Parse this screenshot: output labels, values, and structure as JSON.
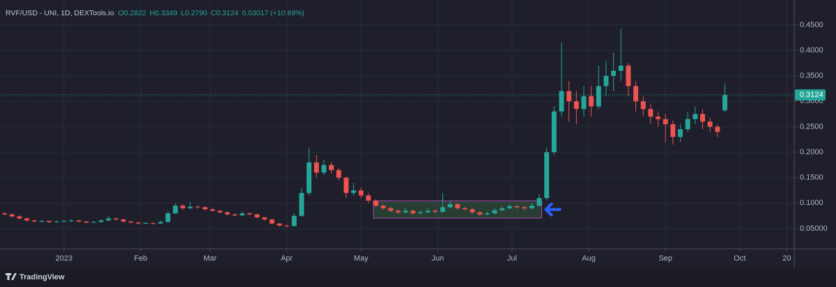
{
  "chart_data": {
    "type": "candlestick",
    "symbol": "RVF/USD - UNI, 1D, DEXTools.io",
    "ohlc_labels": [
      "O0.2822",
      "H0.3349",
      "L0.2790",
      "C0.3124",
      "0.03017 (+10.69%)"
    ],
    "up_color": "#26a69a",
    "down_color": "#ef5350",
    "grid": true,
    "xlim": [
      -23.6,
      295
    ],
    "ylim": [
      0.0104,
      0.488
    ],
    "xticks": [
      {
        "value": 0,
        "label": "2023"
      },
      {
        "value": 31,
        "label": "Feb"
      },
      {
        "value": 59,
        "label": "Mar"
      },
      {
        "value": 90,
        "label": "Apr"
      },
      {
        "value": 120,
        "label": "May"
      },
      {
        "value": 151,
        "label": "Jun"
      },
      {
        "value": 181,
        "label": "Jul"
      },
      {
        "value": 212,
        "label": "Aug"
      },
      {
        "value": 243,
        "label": "Sep"
      },
      {
        "value": 273,
        "label": "Oct"
      },
      {
        "value": 292,
        "label": "20"
      }
    ],
    "yticks": [
      {
        "value": 0.05,
        "label": "0.05000"
      },
      {
        "value": 0.1,
        "label": "0.1000"
      },
      {
        "value": 0.15,
        "label": "0.1500"
      },
      {
        "value": 0.2,
        "label": "0.2000"
      },
      {
        "value": 0.25,
        "label": "0.2500"
      },
      {
        "value": 0.3,
        "label": "0.3000"
      },
      {
        "value": 0.35,
        "label": "0.3500"
      },
      {
        "value": 0.4,
        "label": "0.4000"
      },
      {
        "value": 0.45,
        "label": "0.4500"
      }
    ],
    "last_price": 0.3124,
    "highlight_box": {
      "x": [
        125,
        193
      ],
      "y": [
        0.0705,
        0.1046
      ]
    },
    "x": [
      -24,
      -21,
      -18,
      -15,
      -12,
      -9,
      -6,
      -3,
      0,
      3,
      6,
      9,
      12,
      15,
      18,
      21,
      24,
      27,
      30,
      33,
      36,
      39,
      42,
      45,
      48,
      51,
      54,
      57,
      60,
      63,
      66,
      69,
      72,
      75,
      78,
      81,
      84,
      87,
      90,
      93,
      96,
      99,
      102,
      105,
      108,
      111,
      114,
      117,
      120,
      123,
      126,
      129,
      132,
      135,
      138,
      141,
      144,
      147,
      150,
      153,
      156,
      159,
      162,
      165,
      168,
      171,
      174,
      177,
      180,
      183,
      186,
      189,
      192,
      195,
      198,
      201,
      204,
      207,
      210,
      213,
      216,
      219,
      222,
      225,
      228,
      231,
      234,
      237,
      240,
      243,
      246,
      249,
      252,
      255,
      258,
      261,
      264,
      267
    ],
    "candles": [
      [
        0.08,
        0.083,
        0.076,
        0.078
      ],
      [
        0.078,
        0.08,
        0.072,
        0.074
      ],
      [
        0.074,
        0.076,
        0.068,
        0.07
      ],
      [
        0.07,
        0.072,
        0.064,
        0.066
      ],
      [
        0.066,
        0.068,
        0.062,
        0.064
      ],
      [
        0.064,
        0.067,
        0.062,
        0.065
      ],
      [
        0.065,
        0.066,
        0.061,
        0.063
      ],
      [
        0.063,
        0.066,
        0.062,
        0.064
      ],
      [
        0.064,
        0.067,
        0.063,
        0.065
      ],
      [
        0.065,
        0.068,
        0.063,
        0.066
      ],
      [
        0.066,
        0.067,
        0.062,
        0.064
      ],
      [
        0.064,
        0.065,
        0.06,
        0.062
      ],
      [
        0.062,
        0.065,
        0.061,
        0.063
      ],
      [
        0.063,
        0.068,
        0.062,
        0.066
      ],
      [
        0.066,
        0.075,
        0.065,
        0.07
      ],
      [
        0.07,
        0.072,
        0.066,
        0.068
      ],
      [
        0.068,
        0.069,
        0.062,
        0.064
      ],
      [
        0.064,
        0.065,
        0.06,
        0.062
      ],
      [
        0.062,
        0.063,
        0.058,
        0.06
      ],
      [
        0.06,
        0.063,
        0.059,
        0.061
      ],
      [
        0.061,
        0.062,
        0.058,
        0.06
      ],
      [
        0.06,
        0.066,
        0.059,
        0.063
      ],
      [
        0.063,
        0.085,
        0.062,
        0.08
      ],
      [
        0.08,
        0.1,
        0.078,
        0.095
      ],
      [
        0.095,
        0.098,
        0.087,
        0.09
      ],
      [
        0.09,
        0.102,
        0.088,
        0.093
      ],
      [
        0.093,
        0.096,
        0.089,
        0.092
      ],
      [
        0.092,
        0.094,
        0.085,
        0.088
      ],
      [
        0.088,
        0.09,
        0.083,
        0.085
      ],
      [
        0.085,
        0.087,
        0.08,
        0.082
      ],
      [
        0.082,
        0.084,
        0.076,
        0.078
      ],
      [
        0.078,
        0.08,
        0.074,
        0.076
      ],
      [
        0.076,
        0.083,
        0.075,
        0.08
      ],
      [
        0.08,
        0.082,
        0.076,
        0.078
      ],
      [
        0.078,
        0.079,
        0.07,
        0.072
      ],
      [
        0.072,
        0.073,
        0.066,
        0.068
      ],
      [
        0.068,
        0.069,
        0.058,
        0.06
      ],
      [
        0.06,
        0.061,
        0.054,
        0.056
      ],
      [
        0.056,
        0.058,
        0.052,
        0.055
      ],
      [
        0.055,
        0.08,
        0.054,
        0.075
      ],
      [
        0.075,
        0.13,
        0.073,
        0.12
      ],
      [
        0.12,
        0.208,
        0.115,
        0.18
      ],
      [
        0.18,
        0.195,
        0.15,
        0.16
      ],
      [
        0.16,
        0.185,
        0.155,
        0.175
      ],
      [
        0.175,
        0.18,
        0.158,
        0.165
      ],
      [
        0.165,
        0.17,
        0.145,
        0.15
      ],
      [
        0.15,
        0.152,
        0.11,
        0.12
      ],
      [
        0.12,
        0.14,
        0.115,
        0.125
      ],
      [
        0.125,
        0.13,
        0.11,
        0.115
      ],
      [
        0.115,
        0.12,
        0.1,
        0.105
      ],
      [
        0.105,
        0.108,
        0.092,
        0.095
      ],
      [
        0.095,
        0.098,
        0.087,
        0.09
      ],
      [
        0.09,
        0.093,
        0.082,
        0.085
      ],
      [
        0.085,
        0.088,
        0.079,
        0.082
      ],
      [
        0.082,
        0.09,
        0.08,
        0.085
      ],
      [
        0.085,
        0.087,
        0.077,
        0.08
      ],
      [
        0.08,
        0.086,
        0.078,
        0.082
      ],
      [
        0.082,
        0.09,
        0.08,
        0.085
      ],
      [
        0.085,
        0.088,
        0.08,
        0.083
      ],
      [
        0.083,
        0.12,
        0.081,
        0.092
      ],
      [
        0.092,
        0.105,
        0.09,
        0.098
      ],
      [
        0.098,
        0.1,
        0.087,
        0.09
      ],
      [
        0.09,
        0.093,
        0.085,
        0.088
      ],
      [
        0.088,
        0.09,
        0.079,
        0.082
      ],
      [
        0.082,
        0.084,
        0.075,
        0.078
      ],
      [
        0.078,
        0.083,
        0.076,
        0.08
      ],
      [
        0.08,
        0.09,
        0.078,
        0.086
      ],
      [
        0.086,
        0.094,
        0.084,
        0.09
      ],
      [
        0.09,
        0.098,
        0.088,
        0.094
      ],
      [
        0.094,
        0.096,
        0.089,
        0.092
      ],
      [
        0.092,
        0.095,
        0.086,
        0.09
      ],
      [
        0.09,
        0.1,
        0.088,
        0.095
      ],
      [
        0.095,
        0.118,
        0.093,
        0.11
      ],
      [
        0.11,
        0.21,
        0.105,
        0.2
      ],
      [
        0.2,
        0.29,
        0.195,
        0.28
      ],
      [
        0.28,
        0.415,
        0.27,
        0.32
      ],
      [
        0.32,
        0.34,
        0.26,
        0.3
      ],
      [
        0.3,
        0.32,
        0.255,
        0.285
      ],
      [
        0.285,
        0.33,
        0.27,
        0.31
      ],
      [
        0.31,
        0.33,
        0.27,
        0.29
      ],
      [
        0.29,
        0.37,
        0.285,
        0.33
      ],
      [
        0.33,
        0.38,
        0.31,
        0.35
      ],
      [
        0.35,
        0.395,
        0.32,
        0.36
      ],
      [
        0.36,
        0.442,
        0.34,
        0.37
      ],
      [
        0.37,
        0.375,
        0.31,
        0.33
      ],
      [
        0.33,
        0.34,
        0.28,
        0.3
      ],
      [
        0.3,
        0.31,
        0.27,
        0.285
      ],
      [
        0.285,
        0.295,
        0.255,
        0.27
      ],
      [
        0.27,
        0.28,
        0.25,
        0.265
      ],
      [
        0.265,
        0.275,
        0.22,
        0.255
      ],
      [
        0.255,
        0.262,
        0.215,
        0.23
      ],
      [
        0.23,
        0.255,
        0.22,
        0.245
      ],
      [
        0.245,
        0.28,
        0.24,
        0.265
      ],
      [
        0.265,
        0.29,
        0.255,
        0.275
      ],
      [
        0.275,
        0.285,
        0.245,
        0.26
      ],
      [
        0.26,
        0.268,
        0.24,
        0.25
      ],
      [
        0.25,
        0.255,
        0.23,
        0.24
      ],
      [
        0.2822,
        0.3349,
        0.279,
        0.3124
      ]
    ]
  },
  "footer": {
    "brand": "TradingView"
  }
}
